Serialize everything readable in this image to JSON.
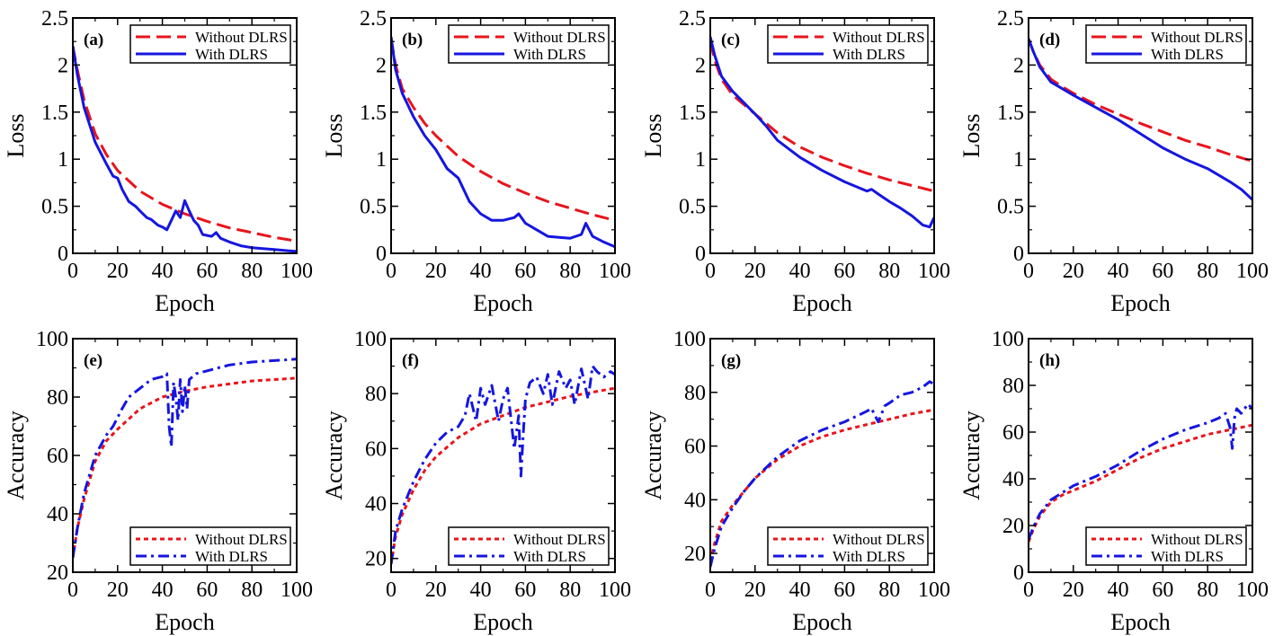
{
  "chart_data": [
    {
      "type": "line",
      "panel_label": "(a)",
      "xlabel": "Epoch",
      "ylabel": "Loss",
      "xlim": [
        0,
        100
      ],
      "ylim": [
        0,
        2.5
      ],
      "xticks": [
        0,
        20,
        40,
        60,
        80,
        100
      ],
      "xtick_labels": [
        "0",
        "20",
        "40",
        "60",
        "80",
        "100"
      ],
      "yticks": [
        0,
        0.5,
        1,
        1.5,
        2,
        2.5
      ],
      "ytick_labels": [
        "0",
        "0.5",
        "1",
        "1.5",
        "2",
        "2.5"
      ],
      "legend_position": "top-right",
      "series": [
        {
          "name": "Without DLRS",
          "color": "#e8141c",
          "style": "dashed",
          "x": [
            0,
            2,
            5,
            10,
            15,
            20,
            30,
            40,
            50,
            60,
            70,
            80,
            90,
            100
          ],
          "y": [
            2.2,
            1.95,
            1.63,
            1.27,
            1.05,
            0.88,
            0.66,
            0.52,
            0.42,
            0.34,
            0.27,
            0.22,
            0.17,
            0.13
          ]
        },
        {
          "name": "With DLRS",
          "color": "#1515e0",
          "style": "solid",
          "x": [
            0,
            2,
            5,
            10,
            15,
            18,
            20,
            22,
            25,
            28,
            30,
            33,
            35,
            38,
            40,
            42,
            44,
            46,
            48,
            50,
            52,
            54,
            56,
            58,
            60,
            62,
            64,
            66,
            70,
            75,
            80,
            85,
            90,
            95,
            100
          ],
          "y": [
            2.2,
            1.9,
            1.55,
            1.18,
            0.95,
            0.82,
            0.8,
            0.68,
            0.55,
            0.5,
            0.45,
            0.38,
            0.36,
            0.3,
            0.28,
            0.25,
            0.35,
            0.45,
            0.38,
            0.56,
            0.45,
            0.35,
            0.3,
            0.2,
            0.19,
            0.18,
            0.22,
            0.16,
            0.12,
            0.08,
            0.06,
            0.05,
            0.04,
            0.03,
            0.02
          ]
        }
      ]
    },
    {
      "type": "line",
      "panel_label": "(b)",
      "xlabel": "Epoch",
      "ylabel": "Loss",
      "xlim": [
        0,
        100
      ],
      "ylim": [
        0,
        2.5
      ],
      "xticks": [
        0,
        20,
        40,
        60,
        80,
        100
      ],
      "xtick_labels": [
        "0",
        "20",
        "40",
        "60",
        "80",
        "100"
      ],
      "yticks": [
        0,
        0.5,
        1,
        1.5,
        2,
        2.5
      ],
      "ytick_labels": [
        "0",
        "0.5",
        "1",
        "1.5",
        "2",
        "2.5"
      ],
      "legend_position": "top-right",
      "series": [
        {
          "name": "Without DLRS",
          "color": "#e8141c",
          "style": "dashed",
          "x": [
            0,
            2,
            5,
            10,
            15,
            20,
            30,
            40,
            50,
            60,
            70,
            80,
            90,
            100
          ],
          "y": [
            2.28,
            2.0,
            1.75,
            1.55,
            1.38,
            1.25,
            1.03,
            0.87,
            0.74,
            0.64,
            0.55,
            0.48,
            0.41,
            0.35
          ]
        },
        {
          "name": "With DLRS",
          "color": "#1515e0",
          "style": "solid",
          "x": [
            0,
            2,
            5,
            10,
            15,
            20,
            25,
            30,
            35,
            40,
            45,
            50,
            55,
            57,
            60,
            65,
            70,
            75,
            80,
            85,
            87,
            90,
            95,
            100
          ],
          "y": [
            2.3,
            1.95,
            1.7,
            1.45,
            1.25,
            1.1,
            0.9,
            0.8,
            0.55,
            0.42,
            0.35,
            0.35,
            0.38,
            0.42,
            0.32,
            0.25,
            0.18,
            0.17,
            0.16,
            0.2,
            0.32,
            0.18,
            0.12,
            0.07
          ]
        }
      ]
    },
    {
      "type": "line",
      "panel_label": "(c)",
      "xlabel": "Epoch",
      "ylabel": "Loss",
      "xlim": [
        0,
        100
      ],
      "ylim": [
        0,
        2.5
      ],
      "xticks": [
        0,
        20,
        40,
        60,
        80,
        100
      ],
      "xtick_labels": [
        "0",
        "20",
        "40",
        "60",
        "80",
        "100"
      ],
      "yticks": [
        0,
        0.5,
        1,
        1.5,
        2,
        2.5
      ],
      "ytick_labels": [
        "0",
        "0.5",
        "1",
        "1.5",
        "2",
        "2.5"
      ],
      "legend_position": "top-right",
      "series": [
        {
          "name": "Without DLRS",
          "color": "#e8141c",
          "style": "dashed",
          "x": [
            0,
            2,
            5,
            10,
            15,
            20,
            30,
            40,
            50,
            60,
            70,
            80,
            90,
            100
          ],
          "y": [
            2.25,
            2.05,
            1.85,
            1.68,
            1.58,
            1.48,
            1.28,
            1.13,
            1.02,
            0.93,
            0.85,
            0.78,
            0.72,
            0.66
          ]
        },
        {
          "name": "With DLRS",
          "color": "#1515e0",
          "style": "solid",
          "x": [
            0,
            2,
            5,
            10,
            15,
            20,
            25,
            30,
            40,
            50,
            60,
            70,
            72,
            75,
            80,
            85,
            90,
            95,
            98,
            100
          ],
          "y": [
            2.3,
            2.1,
            1.88,
            1.72,
            1.6,
            1.48,
            1.35,
            1.2,
            1.02,
            0.88,
            0.76,
            0.66,
            0.68,
            0.63,
            0.55,
            0.48,
            0.4,
            0.3,
            0.28,
            0.38
          ]
        }
      ]
    },
    {
      "type": "line",
      "panel_label": "(d)",
      "xlabel": "Epoch",
      "ylabel": "Loss",
      "xlim": [
        0,
        100
      ],
      "ylim": [
        0,
        2.5
      ],
      "xticks": [
        0,
        20,
        40,
        60,
        80,
        100
      ],
      "xtick_labels": [
        "0",
        "20",
        "40",
        "60",
        "80",
        "100"
      ],
      "yticks": [
        0,
        0.5,
        1,
        1.5,
        2,
        2.5
      ],
      "ytick_labels": [
        "0",
        "0.5",
        "1",
        "1.5",
        "2",
        "2.5"
      ],
      "legend_position": "top-right",
      "series": [
        {
          "name": "Without DLRS",
          "color": "#e8141c",
          "style": "dashed",
          "x": [
            0,
            2,
            5,
            10,
            15,
            20,
            30,
            40,
            50,
            60,
            70,
            80,
            90,
            100
          ],
          "y": [
            2.28,
            2.15,
            2.0,
            1.85,
            1.77,
            1.7,
            1.58,
            1.48,
            1.38,
            1.29,
            1.2,
            1.13,
            1.05,
            0.98
          ]
        },
        {
          "name": "With DLRS",
          "color": "#1515e0",
          "style": "solid",
          "x": [
            0,
            2,
            5,
            10,
            15,
            20,
            30,
            40,
            50,
            60,
            70,
            80,
            90,
            95,
            100
          ],
          "y": [
            2.28,
            2.15,
            1.98,
            1.82,
            1.75,
            1.68,
            1.55,
            1.42,
            1.27,
            1.12,
            1.0,
            0.9,
            0.76,
            0.68,
            0.57
          ]
        }
      ]
    },
    {
      "type": "line",
      "panel_label": "(e)",
      "xlabel": "Epoch",
      "ylabel": "Accuracy",
      "xlim": [
        0,
        100
      ],
      "ylim": [
        20,
        100
      ],
      "xticks": [
        0,
        20,
        40,
        60,
        80,
        100
      ],
      "xtick_labels": [
        "0",
        "20",
        "40",
        "60",
        "80",
        "100"
      ],
      "yticks": [
        20,
        40,
        60,
        80,
        100
      ],
      "ytick_labels": [
        "20",
        "40",
        "60",
        "80",
        "100"
      ],
      "legend_position": "bottom-right",
      "series": [
        {
          "name": "Without DLRS",
          "color": "#e8141c",
          "style": "dotted",
          "x": [
            0,
            2,
            5,
            10,
            15,
            20,
            30,
            40,
            50,
            60,
            70,
            80,
            90,
            100
          ],
          "y": [
            25,
            35,
            45,
            58,
            65,
            69,
            76,
            80,
            82,
            83.5,
            84.5,
            85.5,
            86,
            86.5
          ]
        },
        {
          "name": "With DLRS",
          "color": "#1515e0",
          "style": "dashdot",
          "x": [
            0,
            2,
            5,
            10,
            15,
            18,
            20,
            22,
            25,
            30,
            35,
            40,
            42,
            43,
            44,
            45,
            46,
            47,
            48,
            49,
            50,
            51,
            52,
            55,
            60,
            65,
            70,
            80,
            90,
            100
          ],
          "y": [
            25,
            35,
            47,
            60,
            67,
            70,
            73,
            76,
            80,
            83,
            86,
            87,
            88,
            70,
            63,
            85,
            80,
            72,
            86,
            75,
            84,
            76,
            86,
            88,
            89,
            90,
            91,
            92,
            92.5,
            93
          ]
        }
      ]
    },
    {
      "type": "line",
      "panel_label": "(f)",
      "xlabel": "Epoch",
      "ylabel": "Accuracy",
      "xlim": [
        0,
        100
      ],
      "ylim": [
        15,
        100
      ],
      "xticks": [
        0,
        20,
        40,
        60,
        80,
        100
      ],
      "xtick_labels": [
        "0",
        "20",
        "40",
        "60",
        "80",
        "100"
      ],
      "yticks": [
        20,
        40,
        60,
        80,
        100
      ],
      "ytick_labels": [
        "20",
        "40",
        "60",
        "80",
        "100"
      ],
      "legend_position": "bottom-right",
      "series": [
        {
          "name": "Without DLRS",
          "color": "#e8141c",
          "style": "dotted",
          "x": [
            0,
            2,
            5,
            10,
            15,
            20,
            30,
            40,
            50,
            60,
            70,
            80,
            90,
            100
          ],
          "y": [
            18,
            28,
            36,
            45,
            52,
            57,
            64,
            69,
            72,
            75,
            77,
            79,
            80.5,
            82
          ]
        },
        {
          "name": "With DLRS",
          "color": "#1515e0",
          "style": "dashdot",
          "x": [
            0,
            2,
            5,
            10,
            15,
            20,
            25,
            30,
            33,
            35,
            38,
            40,
            42,
            45,
            48,
            50,
            52,
            55,
            57,
            58,
            59,
            60,
            62,
            65,
            68,
            70,
            72,
            75,
            78,
            80,
            82,
            85,
            88,
            90,
            92,
            95,
            98,
            100
          ],
          "y": [
            18,
            30,
            38,
            48,
            56,
            62,
            66,
            68,
            72,
            80,
            70,
            82,
            76,
            83,
            70,
            78,
            82,
            60,
            72,
            50,
            65,
            78,
            84,
            86,
            80,
            87,
            76,
            88,
            82,
            85,
            76,
            89,
            78,
            90,
            88,
            86,
            88,
            87
          ]
        }
      ]
    },
    {
      "type": "line",
      "panel_label": "(g)",
      "xlabel": "Epoch",
      "ylabel": "Accuracy",
      "xlim": [
        0,
        100
      ],
      "ylim": [
        13,
        100
      ],
      "xticks": [
        0,
        20,
        40,
        60,
        80,
        100
      ],
      "xtick_labels": [
        "0",
        "20",
        "40",
        "60",
        "80",
        "100"
      ],
      "yticks": [
        20,
        40,
        60,
        80,
        100
      ],
      "ytick_labels": [
        "20",
        "40",
        "60",
        "80",
        "100"
      ],
      "legend_position": "bottom-right",
      "series": [
        {
          "name": "Without DLRS",
          "color": "#e8141c",
          "style": "dotted",
          "x": [
            0,
            2,
            5,
            10,
            15,
            20,
            30,
            40,
            50,
            60,
            70,
            80,
            90,
            100
          ],
          "y": [
            17,
            24,
            32,
            38,
            43,
            48,
            55,
            60,
            63.5,
            66,
            68,
            70,
            72,
            73.5
          ]
        },
        {
          "name": "With DLRS",
          "color": "#1515e0",
          "style": "dashdot",
          "x": [
            0,
            2,
            5,
            10,
            15,
            20,
            30,
            40,
            50,
            60,
            70,
            72,
            75,
            78,
            80,
            85,
            90,
            95,
            98,
            100
          ],
          "y": [
            15,
            22,
            30,
            37,
            43,
            48,
            56,
            62,
            66,
            69,
            73,
            74,
            69,
            75,
            76,
            79,
            80,
            82,
            84,
            83
          ]
        }
      ]
    },
    {
      "type": "line",
      "panel_label": "(h)",
      "xlabel": "Epoch",
      "ylabel": "Accuracy",
      "xlim": [
        0,
        100
      ],
      "ylim": [
        0,
        100
      ],
      "xticks": [
        0,
        20,
        40,
        60,
        80,
        100
      ],
      "xtick_labels": [
        "0",
        "20",
        "40",
        "60",
        "80",
        "100"
      ],
      "yticks": [
        0,
        20,
        40,
        60,
        80,
        100
      ],
      "ytick_labels": [
        "0",
        "20",
        "40",
        "60",
        "80",
        "100"
      ],
      "legend_position": "bottom-right",
      "series": [
        {
          "name": "Without DLRS",
          "color": "#e8141c",
          "style": "dotted",
          "x": [
            0,
            2,
            5,
            10,
            15,
            20,
            30,
            40,
            50,
            60,
            70,
            80,
            90,
            100
          ],
          "y": [
            13,
            18,
            24,
            30,
            33,
            35,
            39,
            44,
            49,
            53,
            56,
            59,
            61,
            63
          ]
        },
        {
          "name": "With DLRS",
          "color": "#1515e0",
          "style": "dashdot",
          "x": [
            0,
            2,
            5,
            10,
            15,
            20,
            30,
            40,
            50,
            60,
            70,
            80,
            85,
            88,
            90,
            91,
            92,
            93,
            95,
            98,
            100
          ],
          "y": [
            14,
            19,
            25,
            31,
            34,
            37,
            41,
            46,
            52,
            57,
            61,
            64,
            66,
            68,
            62,
            53,
            66,
            70,
            68,
            72,
            70
          ]
        }
      ]
    }
  ]
}
